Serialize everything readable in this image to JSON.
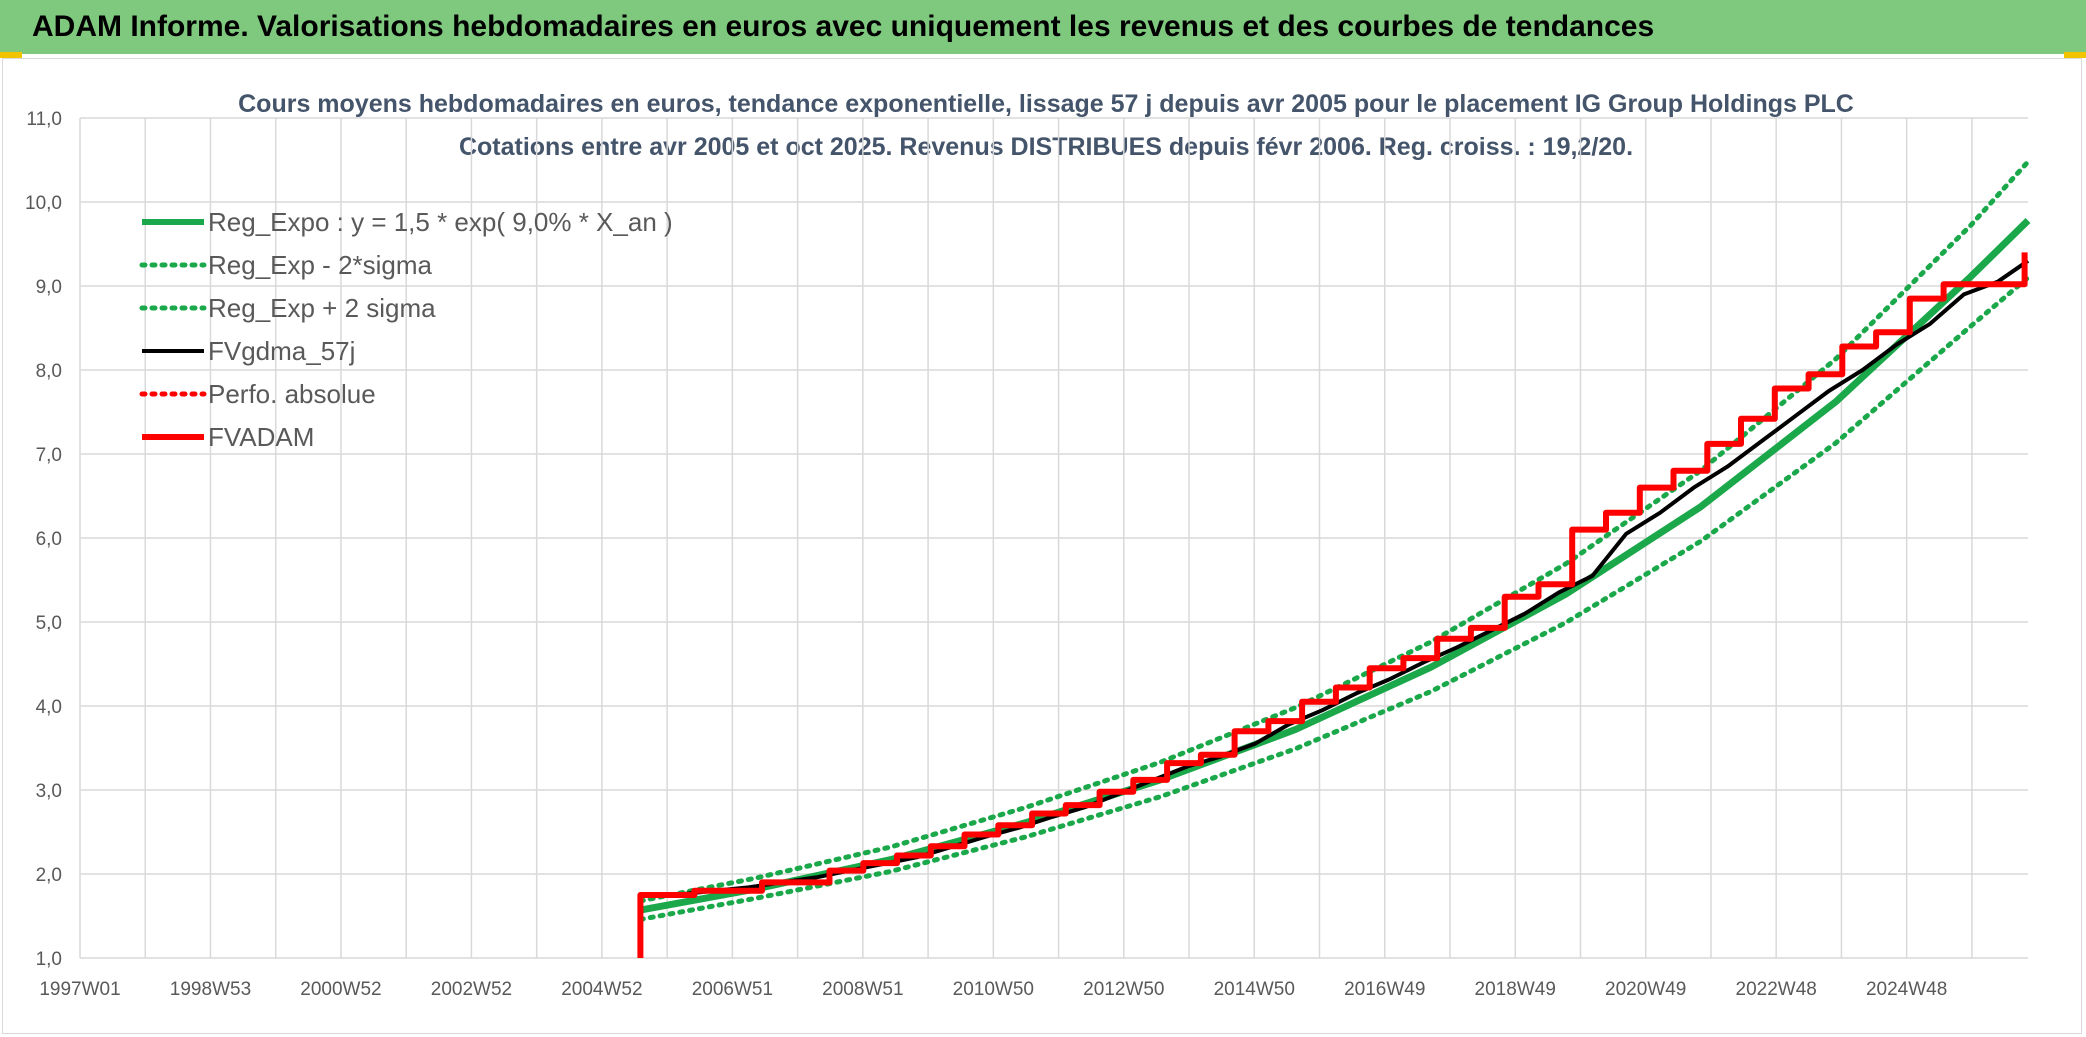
{
  "banner": {
    "title": "ADAM Informe. Valorisations hebdomadaires en euros avec uniquement les revenus et des courbes de tendances"
  },
  "colors": {
    "banner_bg": "#7fc97f",
    "green": "#1aa84a",
    "black": "#000000",
    "red": "#ff0000",
    "grid": "#d9d9d9"
  },
  "chart_data": {
    "type": "line",
    "title": "Cours moyens hebdomadaires en euros, tendance exponentielle, lissage 57 j depuis avr 2005 pour le placement IG Group Holdings PLC",
    "subtitle": "Cotations entre avr 2005 et oct 2025. Revenus DISTRIBUES depuis févr 2006. Reg. croiss. : 19,2/20.",
    "x_ticks": [
      "1997W01",
      "1998W53",
      "2000W52",
      "2002W52",
      "2004W52",
      "2006W51",
      "2008W51",
      "2010W50",
      "2012W50",
      "2014W50",
      "2016W49",
      "2018W49",
      "2020W49",
      "2022W48",
      "2024W48"
    ],
    "x_range": [
      1997.0,
      2025.85
    ],
    "y_ticks": [
      "1,0",
      "2,0",
      "3,0",
      "4,0",
      "5,0",
      "6,0",
      "7,0",
      "8,0",
      "9,0",
      "10,0",
      "11,0"
    ],
    "ylim": [
      1.0,
      11.0
    ],
    "grid": true,
    "legend_position": "top-left",
    "series": [
      {
        "name": "Reg_Expo : y = 1,5 * exp( 9,0% *  X_an )",
        "style": "solid-thick",
        "color": "#1aa84a",
        "x": [
          2005.3,
          2007,
          2009,
          2011,
          2013,
          2015,
          2017,
          2019,
          2021,
          2023,
          2025,
          2025.85
        ],
        "y": [
          1.57,
          1.82,
          2.17,
          2.61,
          3.12,
          3.72,
          4.46,
          5.33,
          6.37,
          7.62,
          9.11,
          9.78
        ]
      },
      {
        "name": "Reg_Exp - 2*sigma",
        "style": "dotted",
        "color": "#1aa84a",
        "x": [
          2005.3,
          2007,
          2009,
          2011,
          2013,
          2015,
          2017,
          2019,
          2021,
          2023,
          2025,
          2025.85
        ],
        "y": [
          1.46,
          1.71,
          2.03,
          2.44,
          2.92,
          3.49,
          4.17,
          4.99,
          5.96,
          7.13,
          8.52,
          9.1
        ]
      },
      {
        "name": "Reg_Exp + 2 sigma",
        "style": "dotted",
        "color": "#1aa84a",
        "x": [
          2005.3,
          2007,
          2009,
          2011,
          2013,
          2015,
          2017,
          2019,
          2021,
          2023,
          2025,
          2025.85
        ],
        "y": [
          1.68,
          1.95,
          2.32,
          2.79,
          3.33,
          3.98,
          4.76,
          5.69,
          6.8,
          8.13,
          9.72,
          10.48
        ]
      },
      {
        "name": "FVgdma_57j",
        "style": "solid",
        "color": "#000000",
        "x": [
          2005.3,
          2005.3,
          2005.9,
          2006.4,
          2006.9,
          2007.4,
          2007.9,
          2008.4,
          2008.9,
          2009.4,
          2009.9,
          2010.4,
          2010.9,
          2011.4,
          2011.9,
          2012.4,
          2012.9,
          2013.4,
          2013.9,
          2014.4,
          2014.9,
          2015.4,
          2015.9,
          2016.4,
          2016.9,
          2017.4,
          2017.9,
          2018.4,
          2018.9,
          2019.4,
          2019.9,
          2020.4,
          2020.9,
          2021.4,
          2021.9,
          2022.4,
          2022.9,
          2023.4,
          2023.9,
          2024.4,
          2024.9,
          2025.4,
          2025.85
        ],
        "y": [
          1.0,
          1.75,
          1.76,
          1.8,
          1.84,
          1.9,
          1.96,
          2.04,
          2.12,
          2.2,
          2.32,
          2.44,
          2.55,
          2.68,
          2.8,
          2.96,
          3.12,
          3.28,
          3.4,
          3.55,
          3.78,
          3.95,
          4.15,
          4.32,
          4.52,
          4.7,
          4.9,
          5.1,
          5.35,
          5.55,
          6.05,
          6.3,
          6.6,
          6.85,
          7.15,
          7.45,
          7.75,
          8.0,
          8.3,
          8.55,
          8.9,
          9.05,
          9.3
        ]
      },
      {
        "name": "Perfo. absolue",
        "style": "dotted",
        "color": "#ff0000",
        "x": [],
        "y": []
      },
      {
        "name": "FVADAM",
        "style": "step-thick",
        "color": "#ff0000",
        "x": [
          2005.3,
          2005.3,
          2006.1,
          2006.1,
          2007.1,
          2007.1,
          2008.1,
          2008.1,
          2008.6,
          2008.6,
          2009.1,
          2009.1,
          2009.6,
          2009.6,
          2010.1,
          2010.1,
          2010.6,
          2010.6,
          2011.1,
          2011.1,
          2011.6,
          2011.6,
          2012.1,
          2012.1,
          2012.6,
          2012.6,
          2013.1,
          2013.1,
          2013.6,
          2013.6,
          2014.1,
          2014.1,
          2014.6,
          2014.6,
          2015.1,
          2015.1,
          2015.6,
          2015.6,
          2016.1,
          2016.1,
          2016.6,
          2016.6,
          2017.1,
          2017.1,
          2017.6,
          2017.6,
          2018.1,
          2018.1,
          2018.6,
          2018.6,
          2019.1,
          2019.1,
          2019.6,
          2019.6,
          2020.1,
          2020.1,
          2020.6,
          2020.6,
          2021.1,
          2021.1,
          2021.6,
          2021.6,
          2022.1,
          2022.1,
          2022.6,
          2022.6,
          2023.1,
          2023.1,
          2023.6,
          2023.6,
          2024.1,
          2024.1,
          2024.6,
          2024.6,
          2025.1,
          2025.1,
          2025.8,
          2025.8
        ],
        "y": [
          1.0,
          1.75,
          1.75,
          1.8,
          1.8,
          1.9,
          1.9,
          2.04,
          2.04,
          2.13,
          2.13,
          2.22,
          2.22,
          2.33,
          2.33,
          2.47,
          2.47,
          2.58,
          2.58,
          2.72,
          2.72,
          2.82,
          2.82,
          2.98,
          2.98,
          3.12,
          3.12,
          3.32,
          3.32,
          3.42,
          3.42,
          3.7,
          3.7,
          3.82,
          3.82,
          4.05,
          4.05,
          4.22,
          4.22,
          4.45,
          4.45,
          4.57,
          4.57,
          4.8,
          4.8,
          4.93,
          4.93,
          5.3,
          5.3,
          5.45,
          5.45,
          6.1,
          6.1,
          6.3,
          6.3,
          6.6,
          6.6,
          6.8,
          6.8,
          7.12,
          7.12,
          7.42,
          7.42,
          7.78,
          7.78,
          7.95,
          7.95,
          8.28,
          8.28,
          8.45,
          8.45,
          8.85,
          8.85,
          9.02,
          9.02,
          9.02,
          9.02,
          9.4
        ]
      }
    ]
  }
}
